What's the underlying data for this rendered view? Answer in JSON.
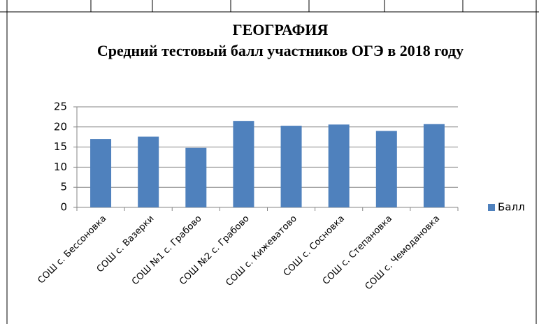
{
  "chart_data": {
    "type": "bar",
    "title": "ГЕОГРАФИЯ",
    "subtitle": "Средний тестовый балл участников ОГЭ в 2018 году",
    "categories": [
      "СОШ с. Бессоновка",
      "СОШ с. Вазерки",
      "СОШ №1 с. Грабово",
      "СОШ №2 с. Грабово",
      "СОШ с. Кижеватово",
      "СОШ с. Сосновка",
      "СОШ с. Степановка",
      "СОШ с. Чемодановка"
    ],
    "series": [
      {
        "name": "Балл",
        "color": "#4f81bd",
        "values": [
          17,
          17.6,
          14.8,
          21.5,
          20.3,
          20.6,
          19,
          20.7
        ]
      }
    ],
    "ylim": [
      0,
      25
    ],
    "yticks": [
      0,
      5,
      10,
      15,
      20,
      25
    ],
    "grid": true,
    "legend": "right"
  }
}
